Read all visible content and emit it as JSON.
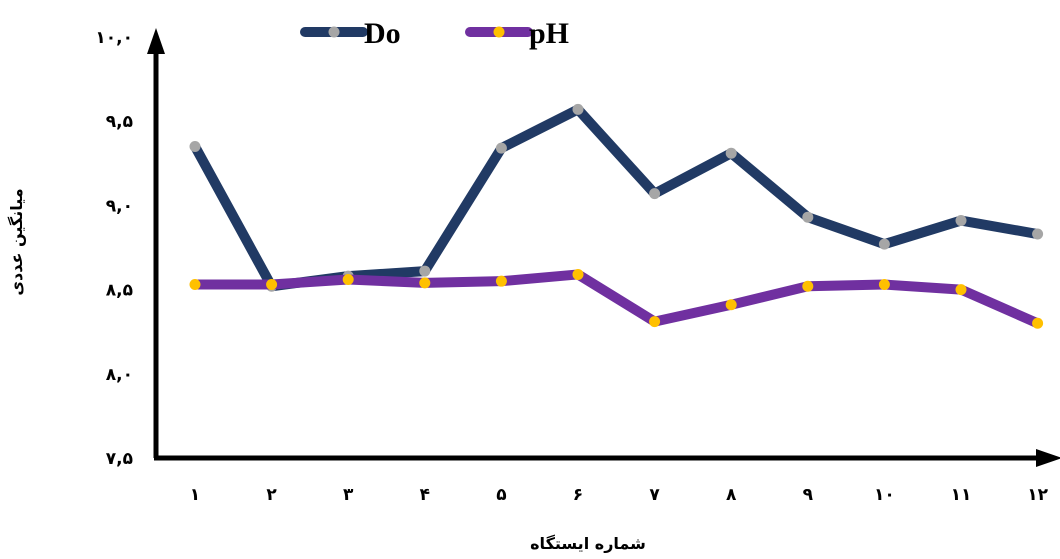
{
  "chart_data": {
    "type": "line",
    "categories": [
      "۱",
      "۲",
      "۳",
      "۴",
      "۵",
      "۶",
      "۷",
      "۸",
      "۹",
      "۱۰",
      "۱۱",
      "۱۲"
    ],
    "x": [
      1,
      2,
      3,
      4,
      5,
      6,
      7,
      8,
      9,
      10,
      11,
      12
    ],
    "y_ticks": [
      7.5,
      8.0,
      8.5,
      9.0,
      9.5,
      10.0
    ],
    "y_tick_labels": [
      "۷,۵",
      "۸,۰",
      "۸,۵",
      "۹,۰",
      "۹,۵",
      "۱۰,۰"
    ],
    "ylim": [
      7.5,
      10.0
    ],
    "xlabel": "شماره ایستگاه",
    "ylabel": "میانگین عددی",
    "title": "",
    "grid": false,
    "legend_position": "top-left",
    "series": [
      {
        "name": "Do",
        "color": "#213A64",
        "marker_color": "#A6A6A6",
        "values": [
          9.35,
          8.52,
          8.58,
          8.61,
          9.34,
          9.57,
          9.07,
          9.31,
          8.93,
          8.77,
          8.91,
          8.83
        ]
      },
      {
        "name": "pH",
        "color": "#7030A0",
        "marker_color": "#FFC000",
        "values": [
          8.53,
          8.53,
          8.56,
          8.54,
          8.55,
          8.59,
          8.31,
          8.41,
          8.52,
          8.53,
          8.5,
          8.3
        ]
      }
    ]
  }
}
